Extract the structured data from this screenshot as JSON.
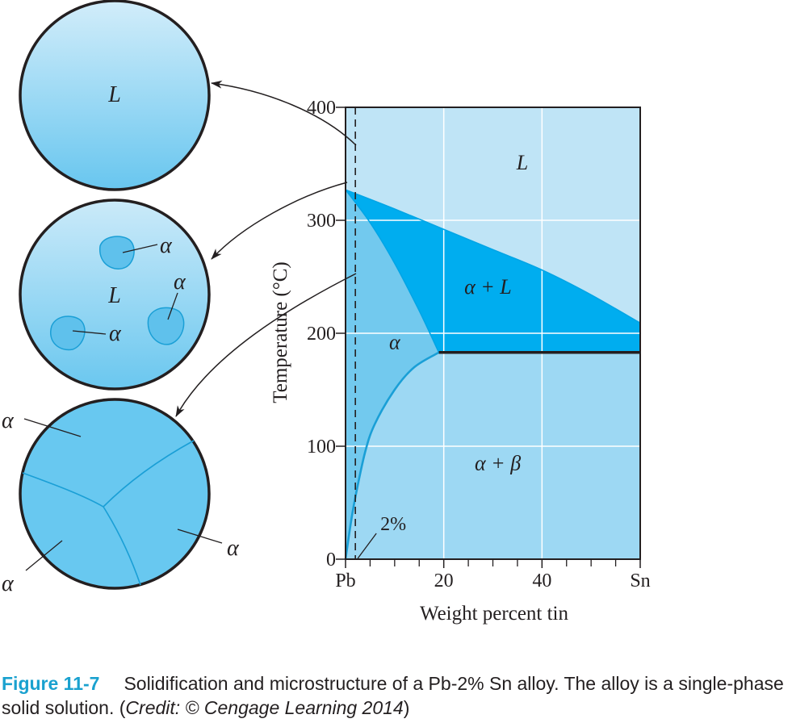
{
  "chart_data": {
    "type": "area",
    "title": "",
    "xlabel": "Weight percent tin",
    "ylabel": "Temperature (°C)",
    "xlim": [
      0,
      60
    ],
    "ylim": [
      0,
      400
    ],
    "x_ticks": [
      0,
      20,
      40,
      60
    ],
    "x_tick_labels": [
      "Pb",
      "20",
      "40",
      "Sn"
    ],
    "x_minor_ticks": [
      5,
      10,
      15,
      25,
      30,
      35,
      45,
      50,
      55
    ],
    "y_ticks": [
      0,
      100,
      200,
      300,
      400
    ],
    "y_tick_labels": [
      "0",
      "100",
      "200",
      "300",
      "400"
    ],
    "grid": true,
    "alloy_composition": 2,
    "alloy_label": "2%",
    "lines": [
      {
        "name": "liquidus",
        "x": [
          0,
          10,
          20,
          30,
          40,
          50,
          60
        ],
        "y": [
          327,
          310,
          292,
          274,
          256,
          234,
          209
        ]
      },
      {
        "name": "solidus",
        "x": [
          0,
          5,
          10,
          15,
          19
        ],
        "y": [
          327,
          298,
          262,
          220,
          183
        ]
      },
      {
        "name": "solvus",
        "x": [
          0,
          1,
          2,
          4,
          6,
          10,
          14,
          19
        ],
        "y": [
          0,
          30,
          55,
          95,
          120,
          150,
          170,
          183
        ]
      },
      {
        "name": "eutectic-isotherm",
        "x": [
          19,
          60
        ],
        "y": [
          183,
          183
        ]
      }
    ],
    "regions": [
      "L",
      "α + L",
      "α",
      "α + β"
    ],
    "colors": {
      "L": "#bfe4f6",
      "alpha_plus_L": "#00adef",
      "alpha": "#72c9ee",
      "alpha_plus_beta": "#9dd8f3",
      "grid": "#ffffff",
      "solvus": "#1a9fd6",
      "axis": "#231f20"
    }
  },
  "circles": {
    "top": {
      "labels": [
        "L"
      ]
    },
    "middle": {
      "labels": [
        "L",
        "α",
        "α",
        "α"
      ]
    },
    "bottom": {
      "labels": [
        "α",
        "α",
        "α"
      ]
    }
  },
  "caption": {
    "figure_label": "Figure 11-7",
    "text": "Solidification and microstructure of a Pb-2% Sn alloy. The alloy is a single-phase solid solution. (",
    "credit": "Credit: © Cengage Learning 2014",
    "close": ")"
  }
}
